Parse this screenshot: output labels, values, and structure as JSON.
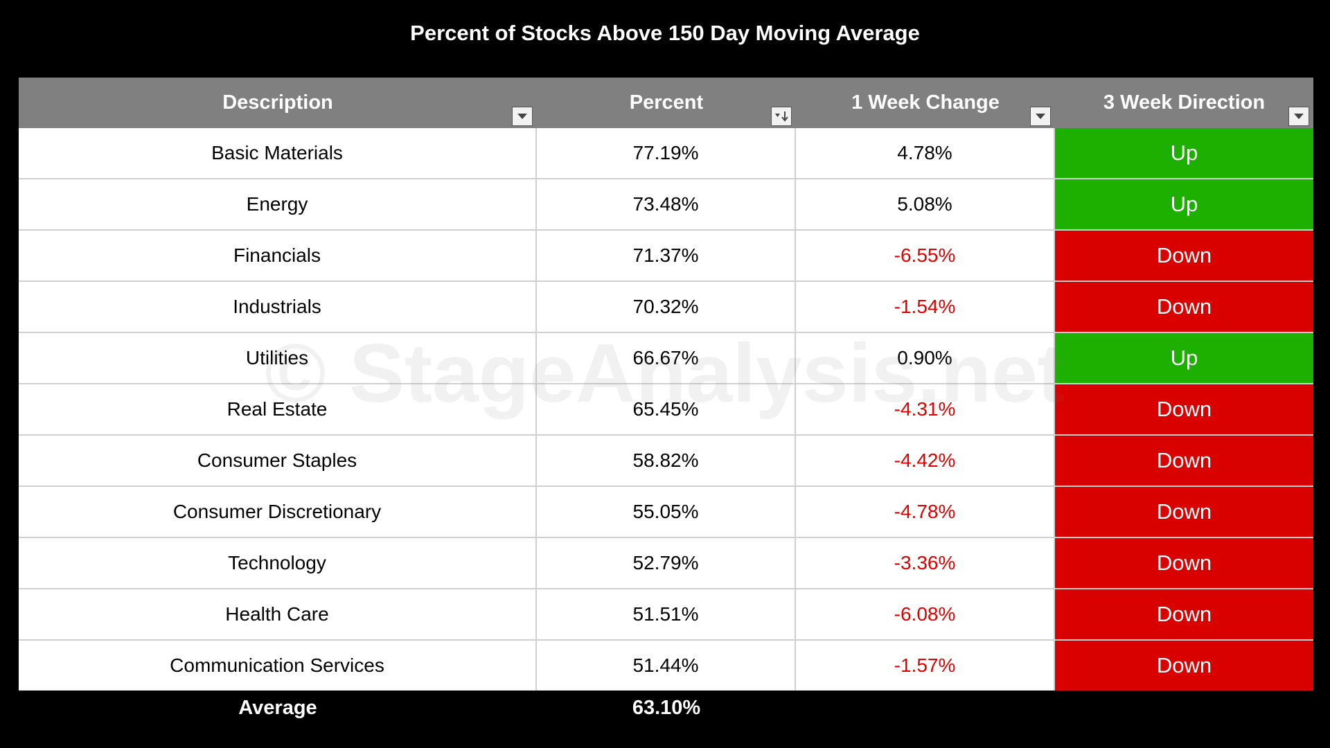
{
  "chart_data": {
    "type": "table",
    "title": "Percent of Stocks Above 150 Day Moving Average",
    "columns": [
      "Description",
      "Percent",
      "1 Week Change",
      "3 Week Direction"
    ],
    "rows": [
      {
        "description": "Basic Materials",
        "percent": "77.19%",
        "change": "4.78%",
        "direction": "Up"
      },
      {
        "description": "Energy",
        "percent": "73.48%",
        "change": "5.08%",
        "direction": "Up"
      },
      {
        "description": "Financials",
        "percent": "71.37%",
        "change": "-6.55%",
        "direction": "Down"
      },
      {
        "description": "Industrials",
        "percent": "70.32%",
        "change": "-1.54%",
        "direction": "Down"
      },
      {
        "description": "Utilities",
        "percent": "66.67%",
        "change": "0.90%",
        "direction": "Up"
      },
      {
        "description": "Real Estate",
        "percent": "65.45%",
        "change": "-4.31%",
        "direction": "Down"
      },
      {
        "description": "Consumer Staples",
        "percent": "58.82%",
        "change": "-4.42%",
        "direction": "Down"
      },
      {
        "description": "Consumer Discretionary",
        "percent": "55.05%",
        "change": "-4.78%",
        "direction": "Down"
      },
      {
        "description": "Technology",
        "percent": "52.79%",
        "change": "-3.36%",
        "direction": "Down"
      },
      {
        "description": "Health Care",
        "percent": "51.51%",
        "change": "-6.08%",
        "direction": "Down"
      },
      {
        "description": "Communication Services",
        "percent": "51.44%",
        "change": "-1.57%",
        "direction": "Down"
      }
    ],
    "average": {
      "label": "Average",
      "percent": "63.10%"
    }
  },
  "watermark": "© StageAnalysis.net",
  "colors": {
    "up": "#1db000",
    "down": "#d90000",
    "negative_text": "#e00000",
    "header": "#808080"
  }
}
